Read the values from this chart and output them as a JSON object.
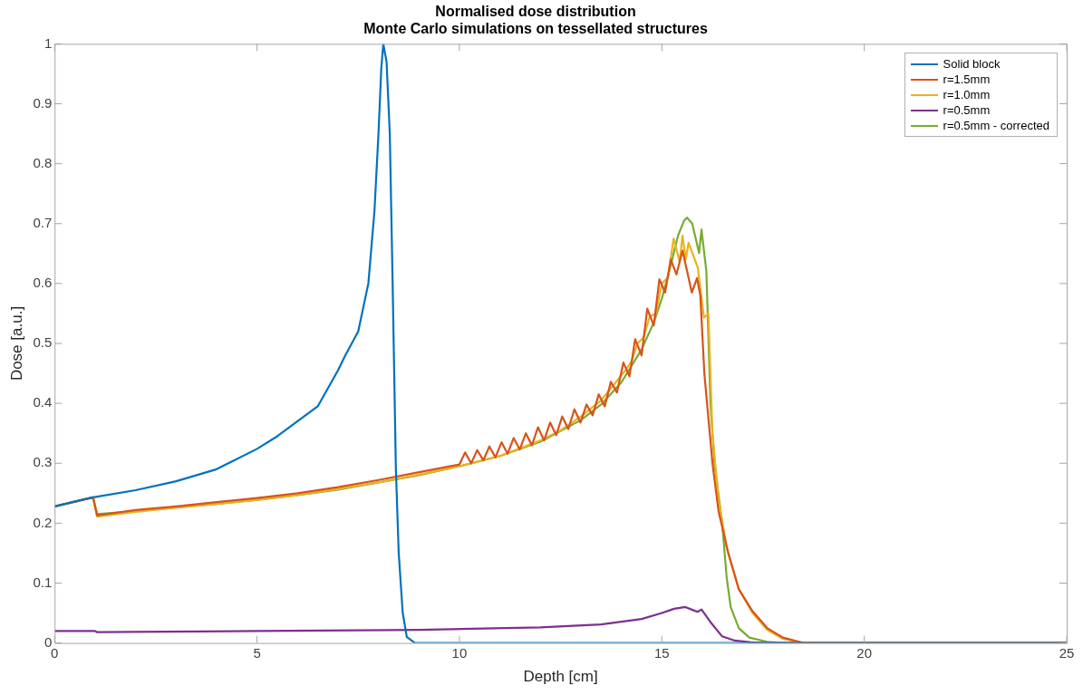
{
  "chart_data": {
    "type": "line",
    "title": "Normalised dose distribution",
    "subtitle": "Monte Carlo simulations on tessellated structures",
    "xlabel": "Depth [cm]",
    "ylabel": "Dose [a.u.]",
    "xlim": [
      0,
      25
    ],
    "xticks": [
      0,
      5,
      10,
      15,
      20,
      25
    ],
    "ylim": [
      0,
      1
    ],
    "yticks": [
      0,
      0.1,
      0.2,
      0.3,
      0.4,
      0.5,
      0.6,
      0.7,
      0.8,
      0.9,
      1
    ],
    "legend": "top right",
    "series": [
      {
        "name": "Solid block",
        "color": "#0072bd",
        "x": [
          0,
          0.95,
          2,
          3,
          4,
          5,
          5.5,
          6,
          6.5,
          7,
          7.18,
          7.5,
          7.75,
          7.9,
          8.0,
          8.07,
          8.12,
          8.2,
          8.28,
          8.35,
          8.43,
          8.5,
          8.6,
          8.7,
          8.9,
          25
        ],
        "values": [
          0.228,
          0.243,
          0.255,
          0.27,
          0.29,
          0.324,
          0.345,
          0.37,
          0.395,
          0.455,
          0.48,
          0.52,
          0.6,
          0.72,
          0.85,
          0.96,
          1.0,
          0.97,
          0.85,
          0.6,
          0.29,
          0.15,
          0.05,
          0.01,
          0,
          0
        ]
      },
      {
        "name": "r=1.5mm",
        "color": "#d95319",
        "x": [
          0,
          0.5,
          0.95,
          1.05,
          2,
          3,
          4,
          5,
          6,
          7,
          8,
          9,
          10,
          10.14,
          10.29,
          10.44,
          10.59,
          10.74,
          10.89,
          11.04,
          11.19,
          11.34,
          11.49,
          11.64,
          11.79,
          11.94,
          12.09,
          12.24,
          12.39,
          12.54,
          12.69,
          12.84,
          12.99,
          13.14,
          13.29,
          13.44,
          13.59,
          13.74,
          13.89,
          14.05,
          14.2,
          14.34,
          14.5,
          14.64,
          14.8,
          14.94,
          15.08,
          15.22,
          15.36,
          15.51,
          15.74,
          15.87,
          15.95,
          16.05,
          16.25,
          16.4,
          16.64,
          16.9,
          17.24,
          17.6,
          17.99,
          18.5,
          25
        ],
        "values": [
          0.228,
          0.236,
          0.243,
          0.213,
          0.222,
          0.228,
          0.235,
          0.242,
          0.25,
          0.26,
          0.272,
          0.285,
          0.298,
          0.318,
          0.3,
          0.322,
          0.305,
          0.328,
          0.31,
          0.335,
          0.316,
          0.342,
          0.323,
          0.35,
          0.33,
          0.36,
          0.338,
          0.368,
          0.347,
          0.378,
          0.357,
          0.39,
          0.368,
          0.398,
          0.38,
          0.415,
          0.395,
          0.436,
          0.418,
          0.468,
          0.445,
          0.507,
          0.48,
          0.558,
          0.53,
          0.607,
          0.585,
          0.64,
          0.615,
          0.655,
          0.585,
          0.609,
          0.58,
          0.45,
          0.3,
          0.22,
          0.15,
          0.09,
          0.053,
          0.025,
          0.009,
          0,
          0
        ]
      },
      {
        "name": "r=1.0mm",
        "color": "#edb120",
        "x": [
          0,
          0.95,
          1.05,
          2,
          3,
          4,
          5,
          6,
          7,
          8,
          9,
          10,
          11,
          12,
          12.5,
          13,
          13.5,
          13.8,
          14.1,
          14.25,
          14.4,
          14.55,
          14.7,
          14.85,
          15.0,
          15.15,
          15.29,
          15.44,
          15.51,
          15.59,
          15.66,
          15.89,
          16.04,
          16.15,
          16.25,
          16.4,
          16.6,
          16.9,
          17.24,
          17.6,
          17.99,
          18.5,
          25
        ],
        "values": [
          0.228,
          0.243,
          0.211,
          0.219,
          0.226,
          0.232,
          0.239,
          0.247,
          0.257,
          0.268,
          0.281,
          0.295,
          0.312,
          0.338,
          0.355,
          0.378,
          0.405,
          0.43,
          0.455,
          0.47,
          0.5,
          0.51,
          0.545,
          0.55,
          0.6,
          0.61,
          0.675,
          0.636,
          0.68,
          0.64,
          0.668,
          0.626,
          0.543,
          0.55,
          0.35,
          0.24,
          0.16,
          0.09,
          0.05,
          0.022,
          0.007,
          0,
          0
        ]
      },
      {
        "name": "r=0.5mm",
        "color": "#7e2f8e",
        "x": [
          0,
          1,
          1.05,
          5,
          9,
          12,
          13.5,
          14.5,
          15,
          15.3,
          15.58,
          15.88,
          15.98,
          16.2,
          16.49,
          16.8,
          17.2,
          17.6,
          25
        ],
        "values": [
          0.02,
          0.02,
          0.018,
          0.02,
          0.022,
          0.026,
          0.031,
          0.04,
          0.05,
          0.057,
          0.06,
          0.052,
          0.056,
          0.035,
          0.011,
          0.004,
          0.001,
          0,
          0
        ]
      },
      {
        "name": "r=0.5mm - corrected",
        "color": "#77ac30",
        "x": [
          0,
          0.3,
          0.6,
          0.95,
          1.05,
          2,
          3,
          4,
          5,
          6,
          7,
          8,
          9,
          10,
          11,
          12,
          13,
          13.5,
          14,
          14.5,
          14.8,
          15.0,
          15.2,
          15.4,
          15.55,
          15.62,
          15.75,
          15.92,
          15.98,
          16.1,
          16.2,
          16.3,
          16.49,
          16.6,
          16.7,
          16.9,
          17.16,
          17.6,
          18,
          25
        ],
        "values": [
          0.228,
          0.233,
          0.238,
          0.243,
          0.215,
          0.22,
          0.226,
          0.232,
          0.239,
          0.247,
          0.256,
          0.268,
          0.28,
          0.295,
          0.312,
          0.336,
          0.372,
          0.398,
          0.435,
          0.49,
          0.535,
          0.575,
          0.625,
          0.68,
          0.705,
          0.71,
          0.7,
          0.651,
          0.69,
          0.62,
          0.4,
          0.3,
          0.2,
          0.11,
          0.06,
          0.025,
          0.009,
          0.002,
          0,
          0
        ]
      }
    ]
  }
}
